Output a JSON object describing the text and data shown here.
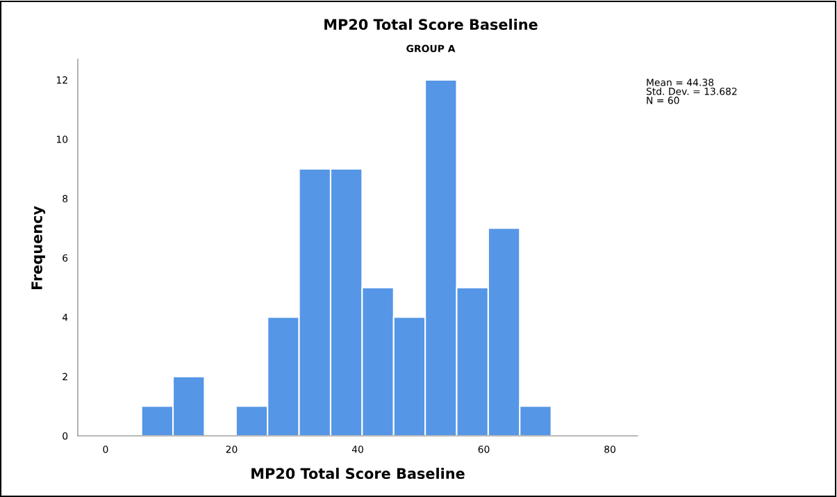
{
  "chart_data": {
    "type": "histogram",
    "title": "MP20 Total Score Baseline",
    "subtitle": "GROUP A",
    "xlabel": "MP20 Total Score Baseline",
    "ylabel": "Frequency",
    "bins": [
      5.7,
      10.7,
      15.7,
      20.7,
      25.7,
      30.7,
      35.7,
      40.7,
      45.7,
      50.7,
      55.7,
      60.7,
      65.7,
      70.7
    ],
    "values": [
      1,
      2,
      0,
      1,
      4,
      9,
      9,
      5,
      4,
      12,
      5,
      7,
      1
    ],
    "color": "#5596e6",
    "xlim": [
      -4.4,
      84.4
    ],
    "xticks": [
      0,
      20,
      40,
      60,
      80
    ],
    "ylim": [
      0,
      12.7
    ],
    "yticks": [
      0,
      2,
      4,
      6,
      8,
      10,
      12
    ],
    "grid": false,
    "annotations": [
      "Mean = 44.38\nStd. Dev. = 13.682\nN = 60"
    ]
  }
}
